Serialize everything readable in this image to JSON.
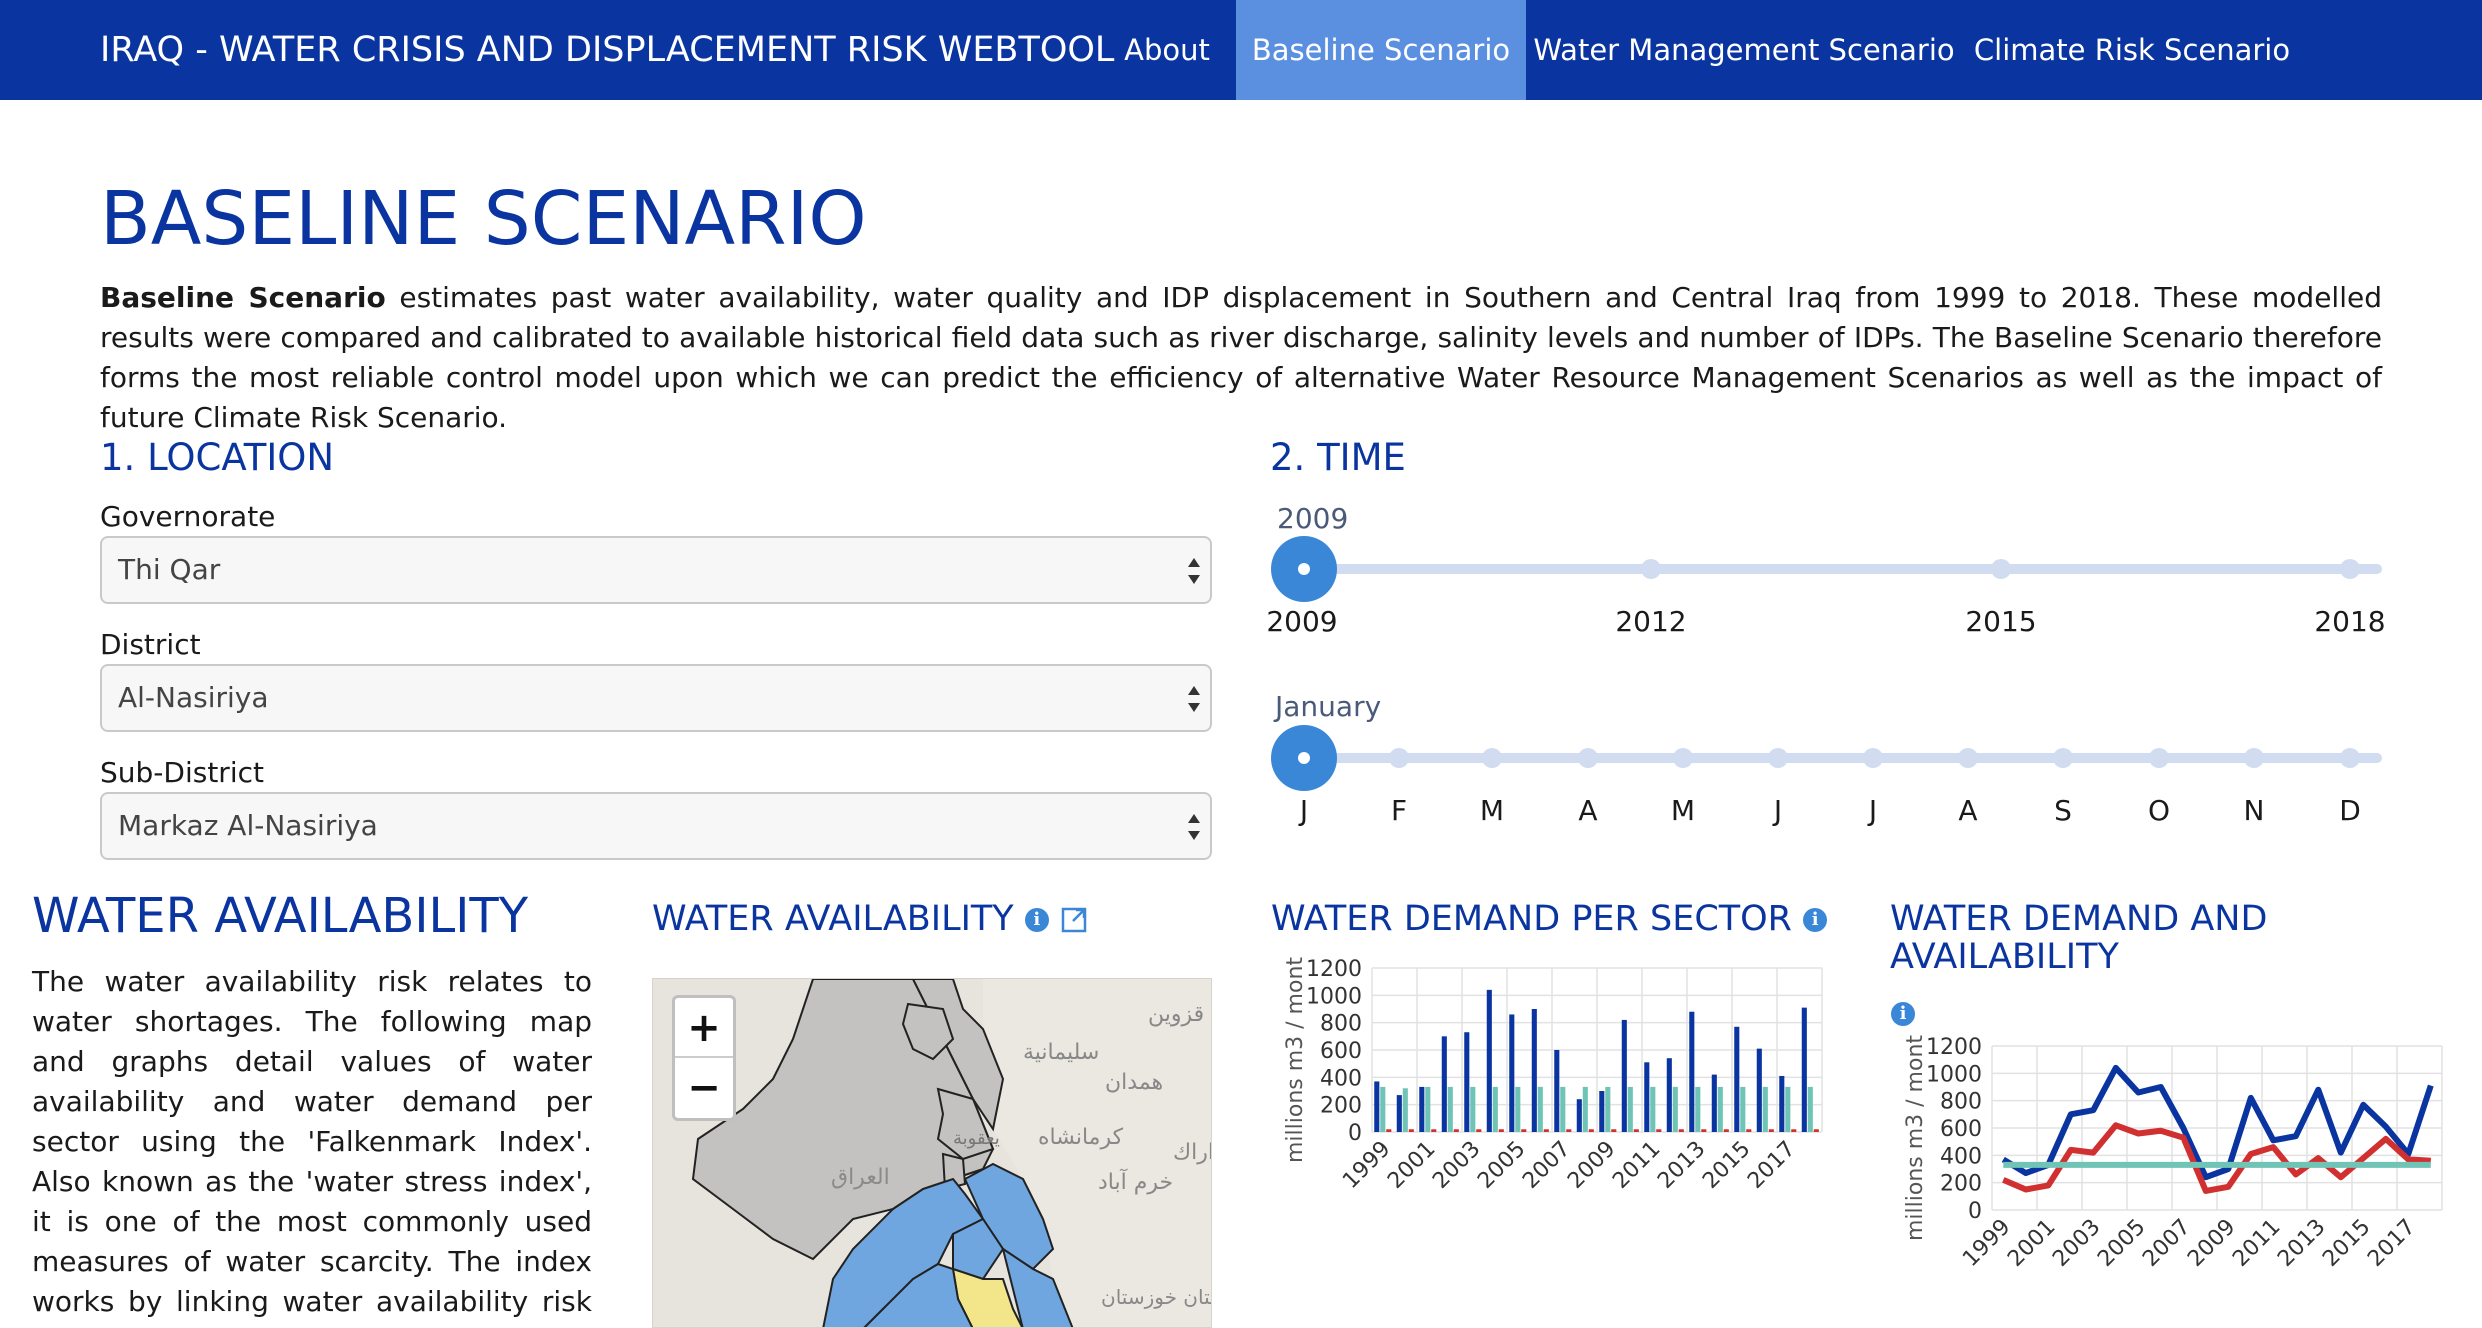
{
  "navbar": {
    "brand": "IRAQ - WATER CRISIS AND DISPLACEMENT RISK WEBTOOL",
    "items": [
      {
        "label": "About",
        "active": false
      },
      {
        "label": "Baseline Scenario",
        "active": true
      },
      {
        "label": "Water Management Scenario",
        "active": false
      },
      {
        "label": "Climate Risk Scenario",
        "active": false
      }
    ]
  },
  "page": {
    "title": "BASELINE SCENARIO",
    "intro_bold": "Baseline Scenario",
    "intro_rest": " estimates past water availability, water quality and IDP displacement in Southern and Central Iraq from 1999 to 2018. These modelled results were compared and calibrated to available historical field data such as river discharge, salinity levels and number of IDPs. The Baseline Scenario therefore forms the most reliable control model upon which we can predict the efficiency of alternative Water Resource Management Scenarios as well as the impact of future Climate Risk Scenario."
  },
  "location": {
    "heading": "1. LOCATION",
    "governorate": {
      "label": "Governorate",
      "value": "Thi Qar"
    },
    "district": {
      "label": "District",
      "value": "Al-Nasiriya"
    },
    "subdistrict": {
      "label": "Sub-District",
      "value": "Markaz Al-Nasiriya"
    }
  },
  "time": {
    "heading": "2. TIME",
    "year_caption": "2009",
    "year_ticks": [
      "2009",
      "2012",
      "2015",
      "2018"
    ],
    "month_caption": "January",
    "month_ticks": [
      "J",
      "F",
      "M",
      "A",
      "M",
      "J",
      "J",
      "A",
      "S",
      "O",
      "N",
      "D"
    ]
  },
  "water_availability": {
    "title": "WATER AVAILABILITY",
    "text": "The water availability risk relates to water shortages. The following map and graphs detail values of water availability and water demand per sector using the 'Falkenmark Index'. Also known as the 'water stress index', it is one of the most commonly used measures of water scarcity. The index works by linking water availability risk to the quantity of water"
  },
  "map_panel": {
    "title": "WATER AVAILABILITY",
    "zoom_in": "+",
    "zoom_out": "−",
    "labels": [
      "العراق",
      "قزوين",
      "همدان",
      "كرمانشاه",
      "سليمانية",
      "خرم آباد",
      "اراك",
      "ستان خوزستان",
      "يعقوبة"
    ]
  },
  "demand_sector": {
    "title": "WATER DEMAND PER SECTOR",
    "chart_data": {
      "type": "bar",
      "ylabel": "millions m3 / mont",
      "ylim": [
        0,
        1200
      ],
      "yticks": [
        "0",
        "200",
        "400",
        "600",
        "800",
        "1000",
        "1200"
      ],
      "x": [
        "1999",
        "2000",
        "2001",
        "2002",
        "2003",
        "2004",
        "2005",
        "2006",
        "2007",
        "2008",
        "2009",
        "2010",
        "2011",
        "2012",
        "2013",
        "2014",
        "2015",
        "2016",
        "2017",
        "2018"
      ],
      "xticks": [
        "1999",
        "2001",
        "2003",
        "2005",
        "2007",
        "2009",
        "2011",
        "2013",
        "2015",
        "2017"
      ],
      "series": [
        {
          "color": "#0a35a0",
          "values": [
            370,
            270,
            330,
            700,
            730,
            1040,
            860,
            900,
            600,
            240,
            300,
            820,
            510,
            540,
            880,
            420,
            770,
            610,
            410,
            910
          ]
        },
        {
          "color": "#6fc4b6",
          "values": [
            330,
            320,
            330,
            330,
            330,
            330,
            330,
            330,
            330,
            330,
            330,
            330,
            330,
            330,
            330,
            330,
            330,
            330,
            330,
            330
          ]
        },
        {
          "color": "#d03030",
          "values": [
            20,
            20,
            20,
            20,
            20,
            20,
            20,
            20,
            20,
            20,
            20,
            20,
            20,
            20,
            20,
            20,
            20,
            20,
            20,
            20
          ]
        }
      ]
    }
  },
  "demand_avail": {
    "title_line1": "WATER DEMAND AND",
    "title_line2": "AVAILABILITY",
    "chart_data": {
      "type": "line",
      "ylabel": "millions m3 / mont",
      "ylim": [
        0,
        1200
      ],
      "yticks": [
        "0",
        "200",
        "400",
        "600",
        "800",
        "1000",
        "1200"
      ],
      "x": [
        "1999",
        "2000",
        "2001",
        "2002",
        "2003",
        "2004",
        "2005",
        "2006",
        "2007",
        "2008",
        "2009",
        "2010",
        "2011",
        "2012",
        "2013",
        "2014",
        "2015",
        "2016",
        "2017",
        "2018"
      ],
      "xticks": [
        "1999",
        "2001",
        "2003",
        "2005",
        "2007",
        "2009",
        "2011",
        "2013",
        "2015",
        "2017"
      ],
      "series": [
        {
          "color": "#0a35a0",
          "values": [
            370,
            270,
            330,
            700,
            730,
            1040,
            860,
            900,
            600,
            240,
            300,
            820,
            510,
            540,
            880,
            420,
            770,
            610,
            410,
            910
          ]
        },
        {
          "color": "#d03030",
          "values": [
            220,
            150,
            180,
            440,
            420,
            620,
            560,
            580,
            530,
            140,
            170,
            410,
            460,
            260,
            380,
            240,
            380,
            520,
            370,
            360
          ]
        },
        {
          "color": "#6fc4b6",
          "values": [
            330,
            330,
            330,
            330,
            330,
            330,
            330,
            330,
            330,
            330,
            330,
            330,
            330,
            330,
            330,
            330,
            330,
            330,
            330,
            330
          ]
        }
      ]
    }
  }
}
